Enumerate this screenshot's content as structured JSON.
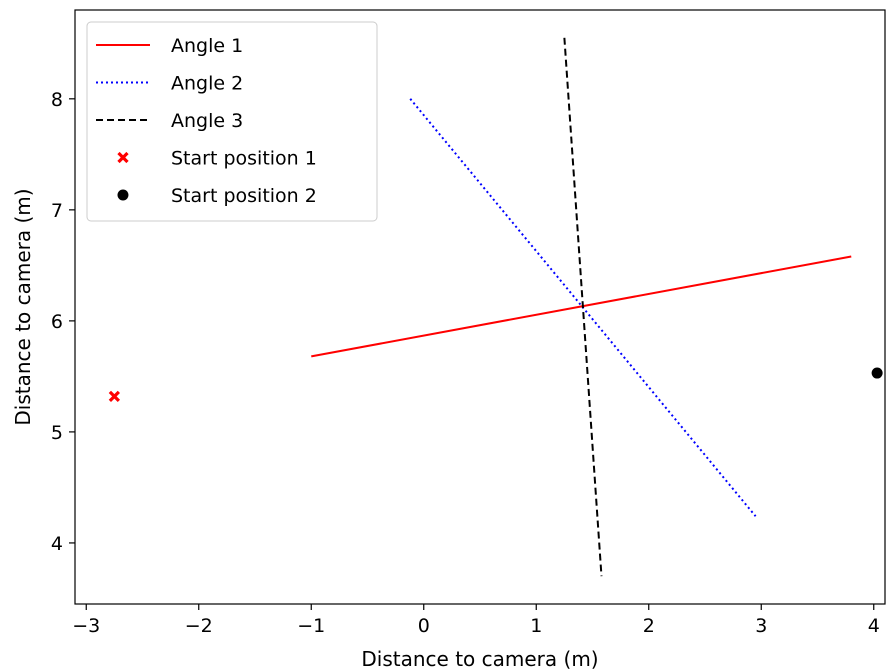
{
  "chart_data": {
    "type": "line",
    "title": "",
    "xlabel": "Distance to camera (m)",
    "ylabel": "Distance to camera (m)",
    "xlim": [
      -3.1,
      4.1
    ],
    "ylim": [
      3.45,
      8.8
    ],
    "xticks": [
      -3,
      -2,
      -1,
      0,
      1,
      2,
      3,
      4
    ],
    "xtick_labels": [
      "−3",
      "−2",
      "−1",
      "0",
      "1",
      "2",
      "3",
      "4"
    ],
    "yticks": [
      4,
      5,
      6,
      7,
      8
    ],
    "ytick_labels": [
      "4",
      "5",
      "6",
      "7",
      "8"
    ],
    "grid": false,
    "legend_position": "top-left",
    "series": [
      {
        "name": "Angle 1",
        "kind": "line",
        "style": "solid",
        "color": "#ff0000",
        "x": [
          -1.0,
          3.8
        ],
        "y": [
          5.68,
          6.58
        ]
      },
      {
        "name": "Angle 2",
        "kind": "line",
        "style": "dotted",
        "color": "#0000ff",
        "x": [
          -0.12,
          2.95
        ],
        "y": [
          8.0,
          4.24
        ]
      },
      {
        "name": "Angle 3",
        "kind": "line",
        "style": "dashed",
        "color": "#000000",
        "x": [
          1.25,
          1.58
        ],
        "y": [
          8.55,
          3.7
        ]
      },
      {
        "name": "Start position 1",
        "kind": "scatter",
        "marker": "x",
        "color": "#ff0000",
        "x": [
          -2.75
        ],
        "y": [
          5.32
        ]
      },
      {
        "name": "Start position 2",
        "kind": "scatter",
        "marker": "circle",
        "color": "#000000",
        "x": [
          4.03
        ],
        "y": [
          5.53
        ]
      }
    ]
  }
}
